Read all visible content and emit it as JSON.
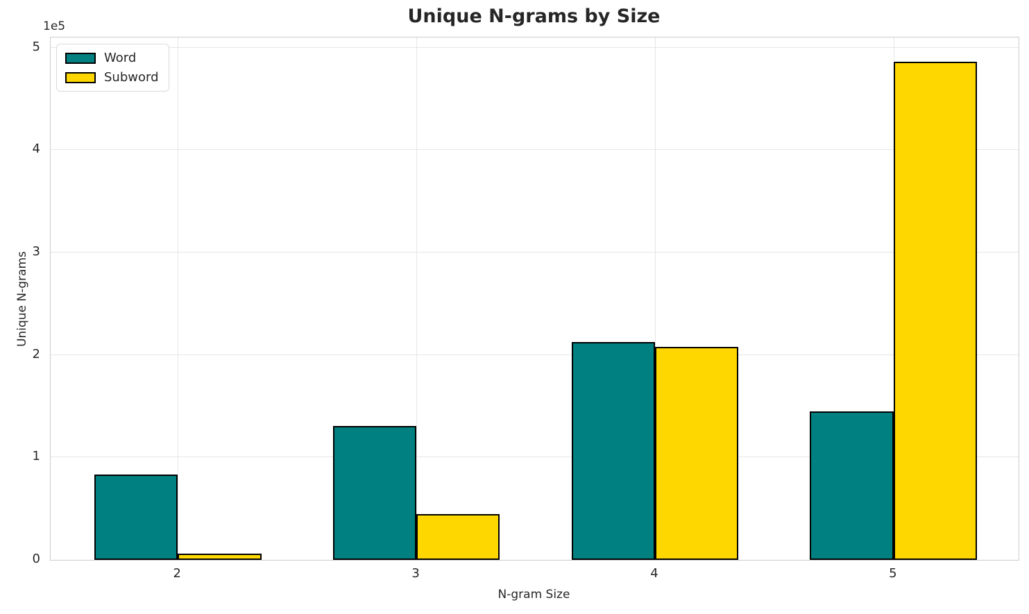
{
  "figure": {
    "background_color": "#ffffff",
    "text_color": "#262626",
    "grid_color": "#e6e6e6",
    "spine_color": "#cccccc"
  },
  "chart_data": {
    "type": "bar",
    "title": "Unique N-grams by Size",
    "xlabel": "N-gram Size",
    "ylabel": "Unique N-grams",
    "y_offset_text": "1e5",
    "categories": [
      "2",
      "3",
      "4",
      "5"
    ],
    "series": [
      {
        "name": "Word",
        "color": "#008080",
        "values": [
          83000,
          131000,
          213000,
          145000
        ]
      },
      {
        "name": "Subword",
        "color": "#FFD700",
        "values": [
          6000,
          45000,
          208000,
          486000
        ]
      }
    ],
    "ylim": [
      0,
      510000
    ],
    "y_ticks": [
      {
        "value": 0,
        "label": "0"
      },
      {
        "value": 100000,
        "label": "1"
      },
      {
        "value": 200000,
        "label": "2"
      },
      {
        "value": 300000,
        "label": "3"
      },
      {
        "value": 400000,
        "label": "4"
      },
      {
        "value": 500000,
        "label": "5"
      }
    ],
    "grid": "on",
    "bar_edge_color": "#000000",
    "bar_width_fraction": 0.35,
    "legend": {
      "position": "upper left",
      "entries": [
        "Word",
        "Subword"
      ]
    }
  }
}
